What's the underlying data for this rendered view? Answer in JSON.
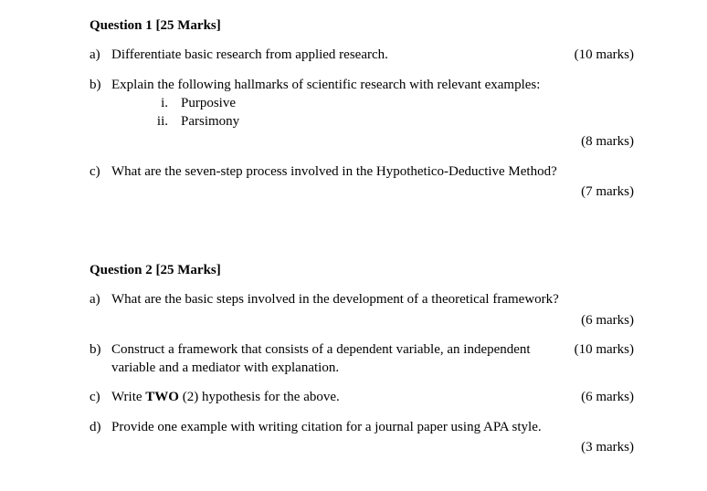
{
  "q1": {
    "header": "Question 1 [25 Marks]",
    "a": {
      "text": "Differentiate basic research from applied research.",
      "marks": "(10 marks)"
    },
    "b": {
      "text": "Explain the following hallmarks of scientific research with relevant examples:",
      "i_num": "i.",
      "i_text": "Purposive",
      "ii_num": "ii.",
      "ii_text": "Parsimony",
      "marks": "(8 marks)"
    },
    "c": {
      "text": "What are the seven-step process involved in the Hypothetico-Deductive Method?",
      "marks": "(7 marks)"
    }
  },
  "q2": {
    "header": "Question 2 [25 Marks]",
    "a": {
      "text": "What are the basic steps involved in the development of a theoretical framework?",
      "marks": "(6 marks)"
    },
    "b": {
      "text": "Construct a framework that consists of a dependent variable, an independent variable and a mediator with explanation.",
      "marks": "(10 marks)"
    },
    "c": {
      "pre": "Write ",
      "bold": "TWO",
      "post": " (2) hypothesis for the above.",
      "marks": "(6 marks)"
    },
    "d": {
      "text": "Provide one example with writing citation for a journal paper using APA style.",
      "marks": "(3 marks)"
    }
  },
  "letters": {
    "a": "a)",
    "b": "b)",
    "c": "c)",
    "d": "d)"
  }
}
